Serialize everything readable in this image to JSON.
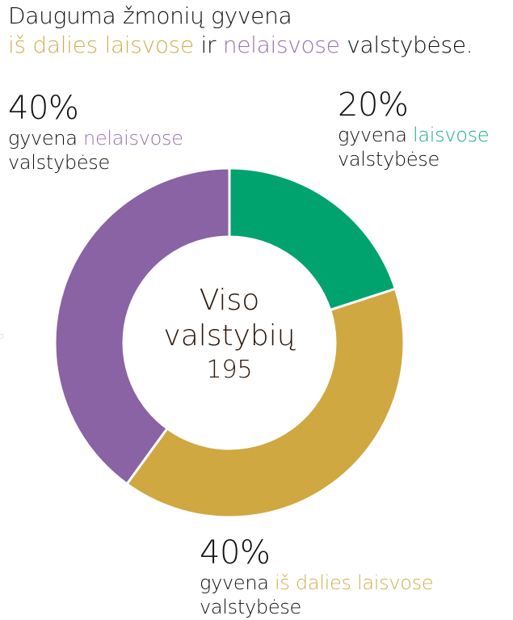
{
  "colors": {
    "free": "#00A36E",
    "partly_free": "#CFA841",
    "not_free": "#8A63A4",
    "free_text": "#1AAE84",
    "partly_free_text": "#D4AE4D",
    "not_free_text": "#9B72B0",
    "text": "#111111",
    "center_text": "#2A1608"
  },
  "title": {
    "line1": "Dauguma žmonių gyvena",
    "line2_part1": "iš dalies laisvose",
    "line2_part2": " ir ",
    "line2_part3": "nelaisvose",
    "line2_part4": " valstybėse."
  },
  "center": {
    "line1": "Viso",
    "line2": "valstybių",
    "value": "195"
  },
  "labels": {
    "not_free": {
      "pct": "40%",
      "prefix": "gyvena ",
      "accent": "nelaisvose",
      "suffix": "valstybėse"
    },
    "free": {
      "pct": "20%",
      "prefix": "gyvena ",
      "accent": "laisvose",
      "suffix": "valstybėse"
    },
    "partly_free": {
      "pct": "40%",
      "prefix": "gyvena ",
      "accent": "iš dalies laisvose",
      "suffix": "valstybėse"
    }
  },
  "chart_data": {
    "type": "pie",
    "subtype": "donut",
    "title": "Dauguma žmonių gyvena iš dalies laisvose ir nelaisvose valstybėse.",
    "center_label": "Viso valstybių 195",
    "total": 195,
    "categories": [
      "laisvose",
      "iš dalies laisvose",
      "nelaisvose"
    ],
    "values": [
      20,
      40,
      40
    ],
    "unit": "%",
    "series_colors": [
      "#00A36E",
      "#CFA841",
      "#8A63A4"
    ],
    "start_angle_deg": 0,
    "direction": "clockwise",
    "legend_position": "annotations around chart"
  }
}
